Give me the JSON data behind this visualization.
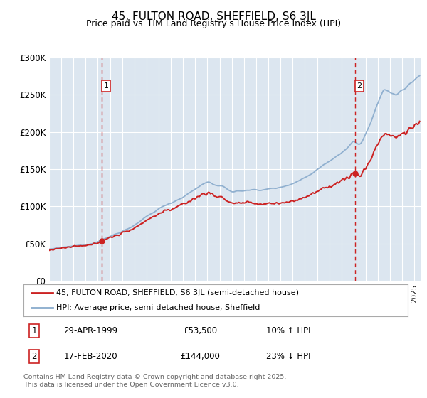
{
  "title": "45, FULTON ROAD, SHEFFIELD, S6 3JL",
  "subtitle": "Price paid vs. HM Land Registry's House Price Index (HPI)",
  "title_fontsize": 11,
  "subtitle_fontsize": 9,
  "bg_color": "#dce6f0",
  "red_color": "#cc2222",
  "blue_color": "#88aacc",
  "dashed_color": "#cc2222",
  "ylim": [
    0,
    300000
  ],
  "yticks": [
    0,
    50000,
    100000,
    150000,
    200000,
    250000,
    300000
  ],
  "ytick_labels": [
    "£0",
    "£50K",
    "£100K",
    "£150K",
    "£200K",
    "£250K",
    "£300K"
  ],
  "sale1_year": 1999.32,
  "sale1_price": 53500,
  "sale2_year": 2020.12,
  "sale2_price": 144000,
  "legend_line1": "45, FULTON ROAD, SHEFFIELD, S6 3JL (semi-detached house)",
  "legend_line2": "HPI: Average price, semi-detached house, Sheffield",
  "ann1_box_label": "1",
  "ann1_date": "29-APR-1999",
  "ann1_price": "£53,500",
  "ann1_hpi": "10% ↑ HPI",
  "ann2_box_label": "2",
  "ann2_date": "17-FEB-2020",
  "ann2_price": "£144,000",
  "ann2_hpi": "23% ↓ HPI",
  "footer": "Contains HM Land Registry data © Crown copyright and database right 2025.\nThis data is licensed under the Open Government Licence v3.0."
}
